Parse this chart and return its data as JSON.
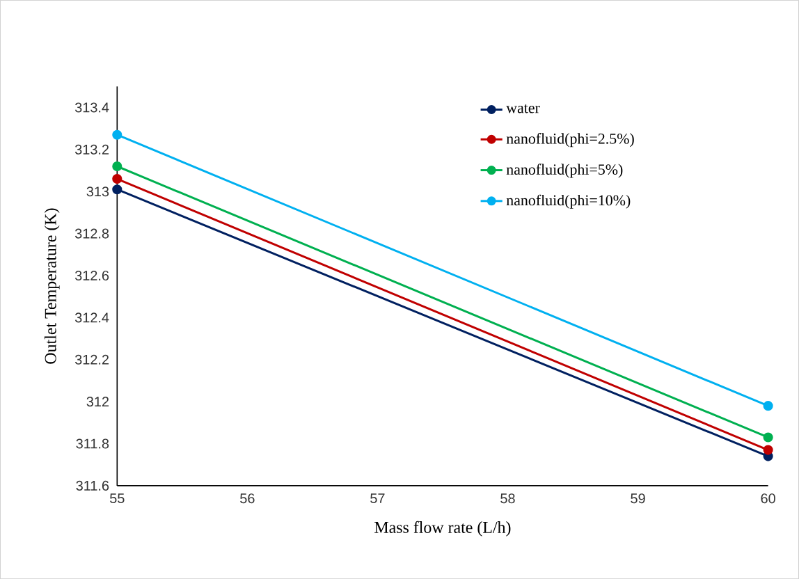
{
  "chart_data": {
    "type": "line",
    "xlabel": "Mass flow rate (L/h)",
    "ylabel": "Outlet Temperature (K)",
    "x": [
      55,
      60
    ],
    "xlim": [
      55,
      60
    ],
    "xticks": [
      55,
      56,
      57,
      58,
      59,
      60
    ],
    "ylim": [
      311.6,
      313.5
    ],
    "yticks": [
      311.6,
      311.8,
      312,
      312.2,
      312.4,
      312.6,
      312.8,
      313,
      313.2,
      313.4
    ],
    "grid": false,
    "legend": "top right",
    "marker": "circle",
    "line_style": "solid",
    "series": [
      {
        "name": "water",
        "color": "#002060",
        "values": [
          313.01,
          311.74
        ]
      },
      {
        "name": "nanofluid(phi=2.5%)",
        "color": "#c00000",
        "values": [
          313.06,
          311.77
        ]
      },
      {
        "name": "nanofluid(phi=5%)",
        "color": "#00b050",
        "values": [
          313.12,
          311.83
        ]
      },
      {
        "name": "nanofluid(phi=10%)",
        "color": "#00b0f0",
        "values": [
          313.27,
          311.98
        ]
      }
    ]
  }
}
